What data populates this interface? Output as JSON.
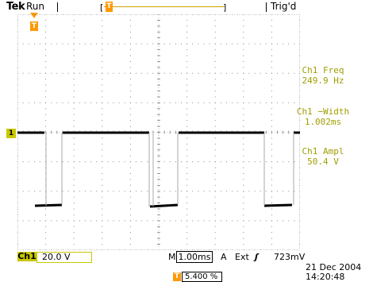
{
  "header": {
    "brand": "Tek",
    "run_state": "Run",
    "trigger_status": "Trig'd",
    "trigger_position_marker": "T"
  },
  "trigger_marker": {
    "label": "T"
  },
  "channel_marker": {
    "label": "1"
  },
  "measurements": [
    {
      "label": "Ch1 Freq",
      "value": "249.9 Hz"
    },
    {
      "label": "Ch1 −Width",
      "value": "1.002ms"
    },
    {
      "label": "Ch1 Ampl",
      "value": "50.4 V"
    }
  ],
  "footer": {
    "channel_label": "Ch1",
    "channel_scale": "20.0 V",
    "timebase_prefix": "M",
    "timebase": "1.00ms",
    "trigger_mode": "A",
    "trigger_source": "Ext",
    "trigger_slope_icon": "rising-edge-icon",
    "trigger_slope_glyph": "ʃ",
    "trigger_level": "723mV",
    "date": "21 Dec  2004",
    "time": "14:20:48",
    "horizontal_position_marker": "T",
    "horizontal_position": "5.400 %"
  },
  "colors": {
    "channel1": "#c8c800",
    "measurement_text": "#9e9e00",
    "trigger_marker": "#ff9900",
    "trace": "#000000"
  }
}
